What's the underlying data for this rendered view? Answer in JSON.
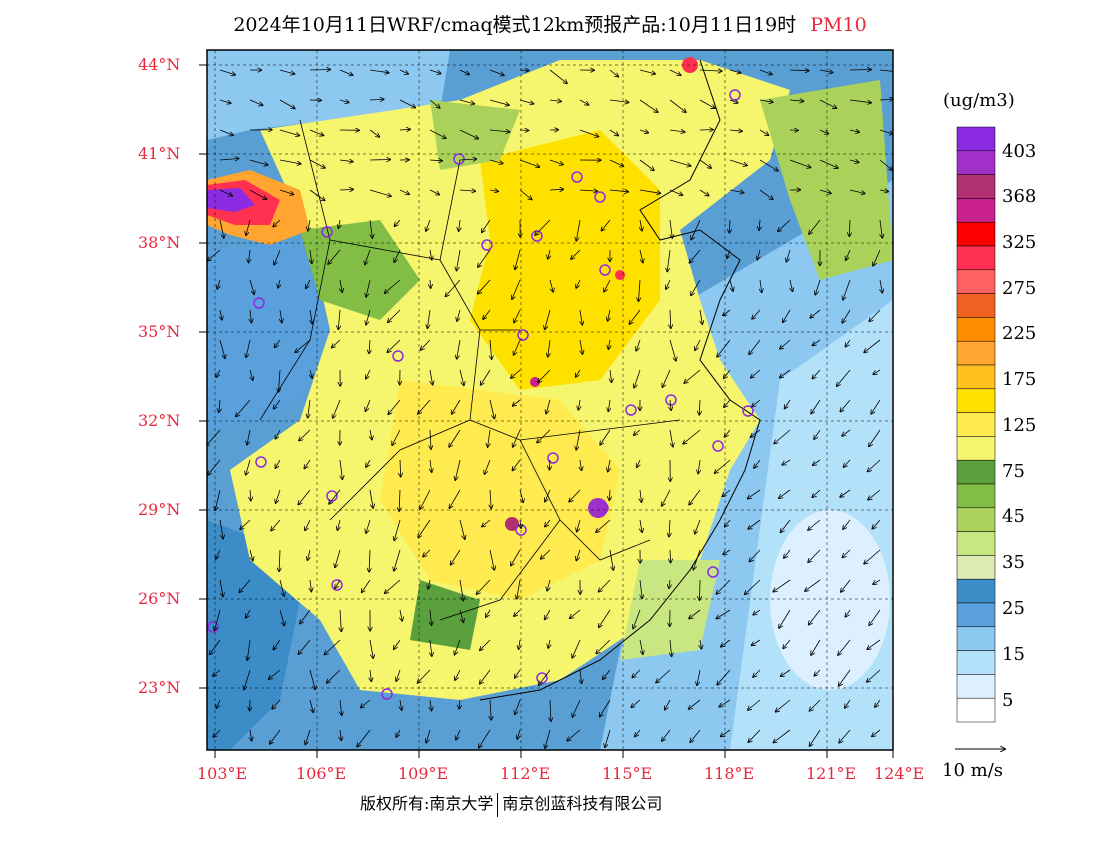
{
  "title": {
    "main": "2024年10月11日WRF/cmaq模式12km预报产品:10月11日19时",
    "pollutant": "PM10"
  },
  "map": {
    "lat_labels": [
      "44°N",
      "41°N",
      "38°N",
      "35°N",
      "32°N",
      "29°N",
      "26°N",
      "23°N"
    ],
    "lon_labels": [
      "103°E",
      "106°E",
      "109°E",
      "112°E",
      "115°E",
      "118°E",
      "121°E",
      "124°E"
    ],
    "lat_values": [
      44,
      41,
      38,
      35,
      32,
      29,
      26,
      23
    ],
    "lon_values": [
      103,
      106,
      109,
      112,
      115,
      118,
      121,
      124
    ],
    "colors": {
      "land_base": "#fff99a",
      "sea": "#5a9fd4"
    }
  },
  "colorbar": {
    "unit": "(ug/m3)",
    "labels": [
      "403",
      "368",
      "325",
      "275",
      "225",
      "175",
      "125",
      "75",
      "45",
      "35",
      "25",
      "15",
      "5"
    ],
    "colors": [
      "#8b2be2",
      "#a030c8",
      "#b03070",
      "#c8208c",
      "#ff0000",
      "#ff3050",
      "#ff6060",
      "#f06020",
      "#ff8c00",
      "#ffa530",
      "#ffc020",
      "#ffe100",
      "#ffea50",
      "#f5f56e",
      "#5aa03c",
      "#82be46",
      "#aad25a",
      "#c8e682",
      "#dceab4",
      "#3c8cc8",
      "#5aa0dc",
      "#8cc8f0",
      "#b4e1fa",
      "#dcf0ff",
      "#ffffff"
    ]
  },
  "wind_legend": {
    "label": "10 m/s"
  },
  "copyright": {
    "left": "版权所有:南京大学",
    "right": "南京创蓝科技有限公司"
  }
}
